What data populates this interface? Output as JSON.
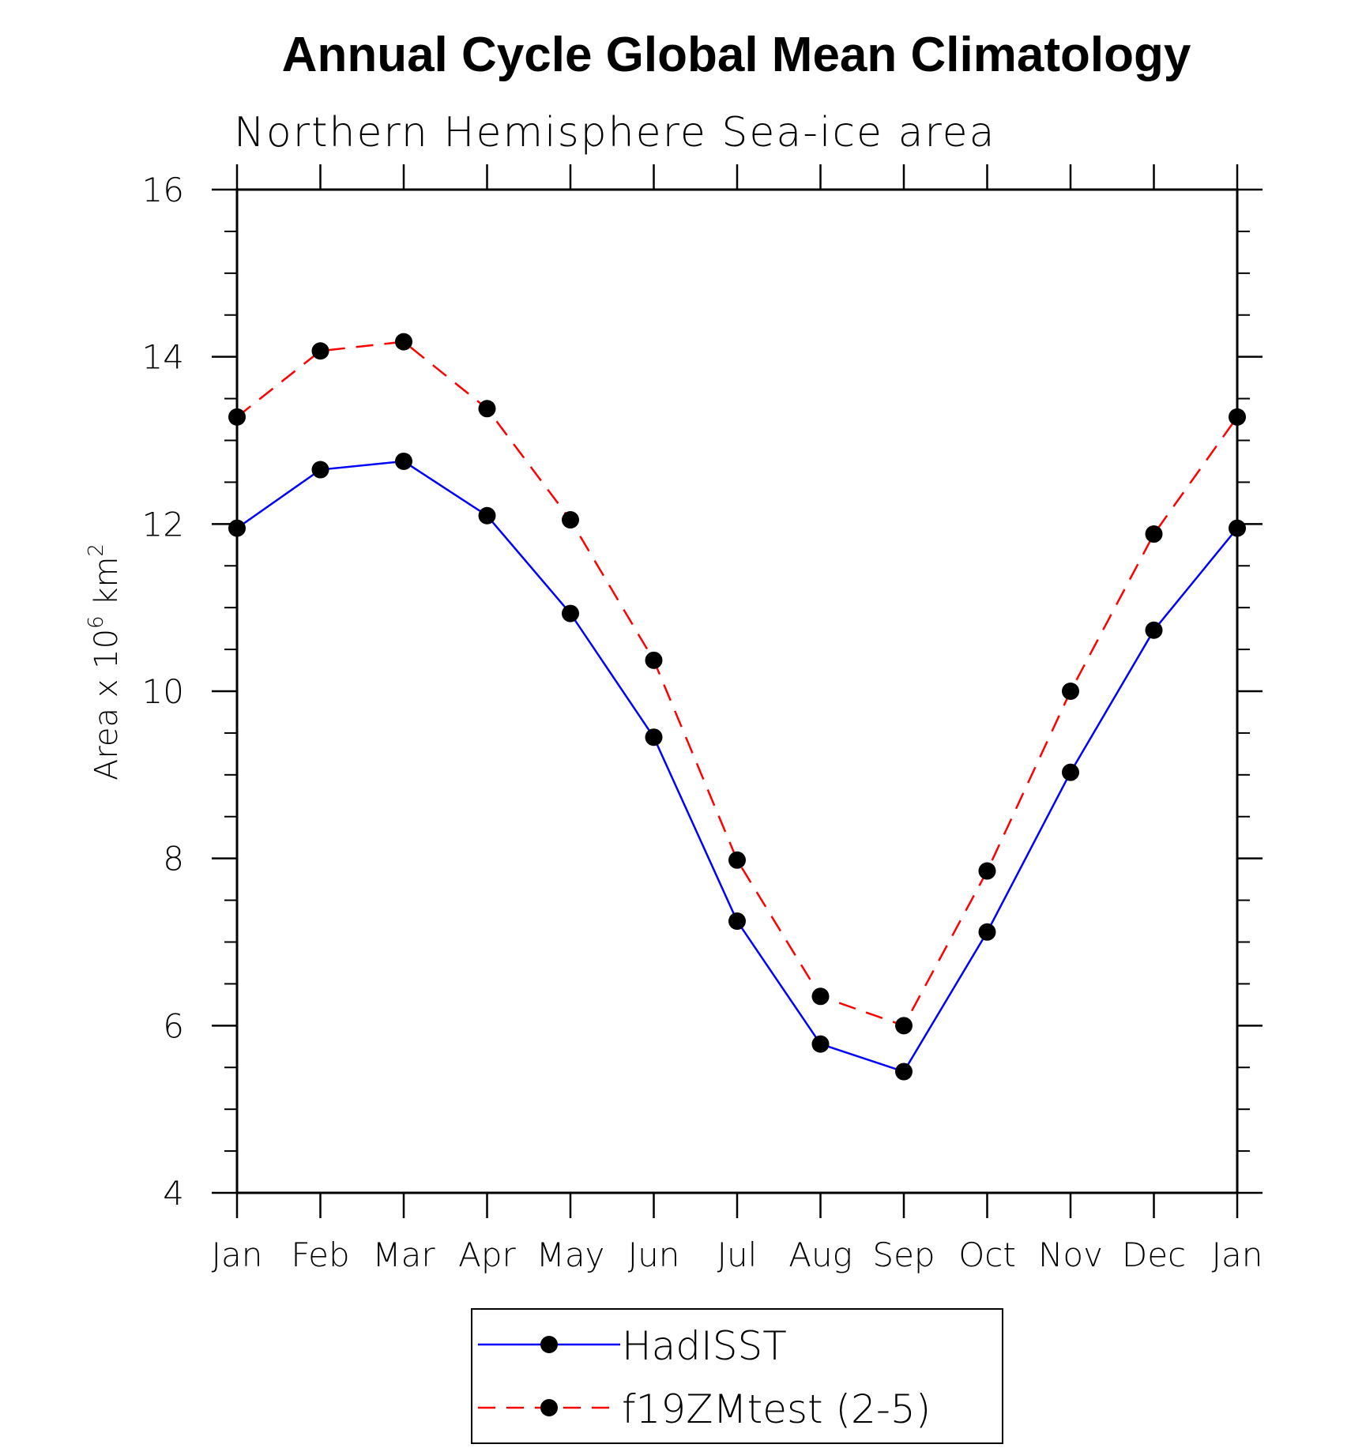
{
  "chart_data": {
    "type": "line",
    "title": "Annual Cycle Global Mean Climatology",
    "subtitle": "Northern Hemisphere Sea-ice area",
    "ylabel": "Area x 10",
    "ylabel_exp6": "6",
    "ylabel_unit": " km",
    "ylabel_exp2": "2",
    "ylim": [
      4,
      16
    ],
    "yticks": [
      "4",
      "6",
      "8",
      "10",
      "12",
      "14",
      "16"
    ],
    "categories": [
      "Jan",
      "Feb",
      "Mar",
      "Apr",
      "May",
      "Jun",
      "Jul",
      "Aug",
      "Sep",
      "Oct",
      "Nov",
      "Dec",
      "Jan"
    ],
    "grid": false,
    "legend_position": "bottom",
    "series": [
      {
        "name": "HadISST",
        "color": "#0000ff",
        "line_style": "solid",
        "marker": "filled-circle",
        "values": [
          11.95,
          12.65,
          12.75,
          12.1,
          10.93,
          9.45,
          7.25,
          5.78,
          5.45,
          7.12,
          9.03,
          10.73,
          11.95
        ]
      },
      {
        "name": "f19ZMtest (2-5)",
        "color": "#ff0000",
        "line_style": "dashed",
        "marker": "filled-circle",
        "values": [
          13.28,
          14.07,
          14.18,
          13.38,
          12.05,
          10.37,
          7.98,
          6.35,
          6.0,
          7.85,
          10.0,
          11.88,
          13.28
        ]
      }
    ]
  }
}
